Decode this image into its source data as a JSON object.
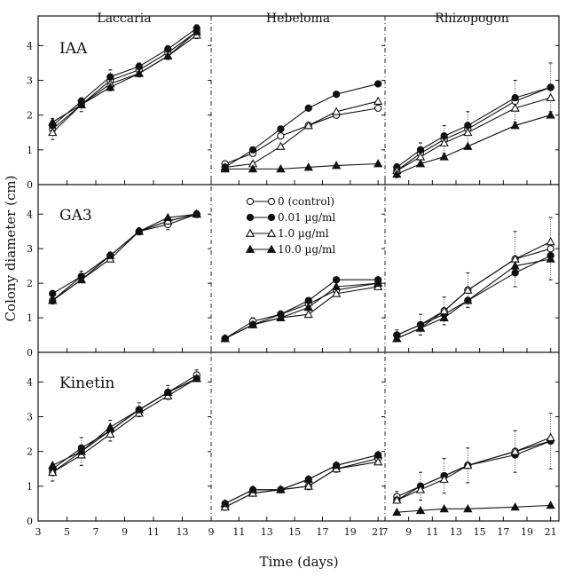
{
  "chart_data": {
    "type": "line",
    "xlabel": "Time (days)",
    "ylabel": "Colony diameter (cm)",
    "ylim": [
      0,
      4.7
    ],
    "yticks": [
      0,
      1,
      2,
      3,
      4
    ],
    "row_labels": [
      "IAA",
      "GA3",
      "Kinetin"
    ],
    "columns": [
      {
        "label": "Laccaria",
        "xlim": [
          3,
          15
        ],
        "xticks": [
          3,
          5,
          7,
          9,
          11,
          13
        ],
        "xtick_labels": [
          "3",
          "5",
          "7",
          "9",
          "11",
          "13"
        ]
      },
      {
        "label": "Hebeloma",
        "xlim": [
          9,
          21.5
        ],
        "xticks": [
          9,
          11,
          13,
          15,
          17,
          19,
          21
        ],
        "xtick_labels": [
          "9",
          "11",
          "13",
          "15",
          "17",
          "19",
          "21"
        ]
      },
      {
        "label": "Rhizopogon",
        "xlim": [
          7,
          21.7
        ],
        "xticks": [
          7,
          9,
          11,
          13,
          15,
          17,
          19,
          21
        ],
        "xtick_labels": [
          "7",
          "9",
          "11",
          "13",
          "15",
          "17",
          "19",
          "21"
        ]
      }
    ],
    "legend": {
      "entries": [
        "0 (control)",
        "0.01 µg/ml",
        "1.0 µg/ml",
        "10.0 µg/ml"
      ],
      "markers": [
        "open-circle",
        "filled-circle",
        "open-triangle",
        "filled-triangle"
      ]
    },
    "panels": [
      {
        "row": 0,
        "col": 0,
        "x": [
          4,
          6,
          8,
          10,
          12,
          14
        ],
        "series": [
          {
            "marker": "open-circle",
            "values": [
              1.6,
              2.3,
              3.0,
              3.3,
              3.8,
              4.4
            ]
          },
          {
            "marker": "filled-circle",
            "values": [
              1.7,
              2.4,
              3.1,
              3.4,
              3.9,
              4.5
            ]
          },
          {
            "marker": "open-triangle",
            "values": [
              1.5,
              2.3,
              2.9,
              3.2,
              3.7,
              4.3
            ]
          },
          {
            "marker": "filled-triangle",
            "values": [
              1.8,
              2.3,
              2.8,
              3.2,
              3.7,
              4.4
            ]
          }
        ],
        "error": [
          0.3,
          0.2,
          0.3,
          0.2,
          0.2,
          0.2
        ]
      },
      {
        "row": 0,
        "col": 1,
        "x": [
          10,
          12,
          14,
          16,
          18,
          21
        ],
        "series": [
          {
            "marker": "open-circle",
            "values": [
              0.6,
              0.9,
              1.4,
              1.7,
              2.0,
              2.2
            ]
          },
          {
            "marker": "filled-circle",
            "values": [
              0.5,
              1.0,
              1.6,
              2.2,
              2.6,
              2.9
            ]
          },
          {
            "marker": "open-triangle",
            "values": [
              0.5,
              0.6,
              1.1,
              1.7,
              2.1,
              2.4
            ]
          },
          {
            "marker": "filled-triangle",
            "values": [
              0.45,
              0.45,
              0.45,
              0.5,
              0.55,
              0.6
            ]
          }
        ],
        "error": [
          0.05,
          0.05,
          0.05,
          0.05,
          0.05,
          0.05
        ]
      },
      {
        "row": 0,
        "col": 2,
        "x": [
          8,
          10,
          12,
          14,
          18,
          21
        ],
        "series": [
          {
            "marker": "open-circle",
            "values": [
              0.4,
              0.9,
              1.3,
              1.6,
              2.4,
              2.8
            ]
          },
          {
            "marker": "filled-circle",
            "values": [
              0.5,
              1.0,
              1.4,
              1.7,
              2.5,
              2.8
            ]
          },
          {
            "marker": "open-triangle",
            "values": [
              0.4,
              0.8,
              1.2,
              1.5,
              2.2,
              2.5
            ]
          },
          {
            "marker": "filled-triangle",
            "values": [
              0.3,
              0.6,
              0.8,
              1.1,
              1.7,
              2.0
            ]
          }
        ],
        "error": [
          0.2,
          0.3,
          0.4,
          0.5,
          0.6,
          0.7
        ]
      },
      {
        "row": 1,
        "col": 0,
        "x": [
          4,
          6,
          8,
          10,
          12,
          14
        ],
        "series": [
          {
            "marker": "open-circle",
            "values": [
              1.5,
              2.2,
              2.8,
              3.5,
              3.7,
              4.0
            ]
          },
          {
            "marker": "filled-circle",
            "values": [
              1.7,
              2.2,
              2.8,
              3.5,
              3.8,
              4.0
            ]
          },
          {
            "marker": "open-triangle",
            "values": [
              1.5,
              2.1,
              2.7,
              3.5,
              3.8,
              4.0
            ]
          },
          {
            "marker": "filled-triangle",
            "values": [
              1.5,
              2.1,
              2.8,
              3.5,
              3.9,
              4.0
            ]
          }
        ],
        "error": [
          0.1,
          0.15,
          0.1,
          0.1,
          0.15,
          0.1
        ]
      },
      {
        "row": 1,
        "col": 1,
        "x": [
          10,
          12,
          14,
          16,
          18,
          21
        ],
        "series": [
          {
            "marker": "open-circle",
            "values": [
              0.4,
              0.9,
              1.1,
              1.4,
              1.8,
              2.0
            ]
          },
          {
            "marker": "filled-circle",
            "values": [
              0.4,
              0.8,
              1.1,
              1.5,
              2.1,
              2.1
            ]
          },
          {
            "marker": "open-triangle",
            "values": [
              0.4,
              0.8,
              1.0,
              1.1,
              1.7,
              1.9
            ]
          },
          {
            "marker": "filled-triangle",
            "values": [
              0.4,
              0.8,
              1.0,
              1.3,
              1.9,
              2.0
            ]
          }
        ],
        "error": [
          0.05,
          0.1,
          0.1,
          0.15,
          0.15,
          0.1
        ]
      },
      {
        "row": 1,
        "col": 2,
        "x": [
          8,
          10,
          12,
          14,
          18,
          21
        ],
        "series": [
          {
            "marker": "open-circle",
            "values": [
              0.5,
              0.8,
              1.2,
              1.8,
              2.7,
              3.0
            ]
          },
          {
            "marker": "filled-circle",
            "values": [
              0.5,
              0.8,
              1.1,
              1.5,
              2.3,
              2.8
            ]
          },
          {
            "marker": "open-triangle",
            "values": [
              0.4,
              0.7,
              1.2,
              1.8,
              2.7,
              3.2
            ]
          },
          {
            "marker": "filled-triangle",
            "values": [
              0.4,
              0.7,
              1.0,
              1.5,
              2.5,
              2.7
            ]
          }
        ],
        "error": [
          0.15,
          0.3,
          0.4,
          0.5,
          0.8,
          0.9
        ]
      },
      {
        "row": 2,
        "col": 0,
        "x": [
          4,
          6,
          8,
          10,
          12,
          14
        ],
        "series": [
          {
            "marker": "open-circle",
            "values": [
              1.4,
              2.0,
              2.6,
              3.2,
              3.7,
              4.2
            ]
          },
          {
            "marker": "filled-circle",
            "values": [
              1.5,
              2.1,
              2.6,
              3.2,
              3.7,
              4.1
            ]
          },
          {
            "marker": "open-triangle",
            "values": [
              1.4,
              1.9,
              2.5,
              3.1,
              3.6,
              4.1
            ]
          },
          {
            "marker": "filled-triangle",
            "values": [
              1.6,
              2.0,
              2.7,
              3.2,
              3.7,
              4.1
            ]
          }
        ],
        "error": [
          0.25,
          0.4,
          0.3,
          0.2,
          0.2,
          0.15
        ]
      },
      {
        "row": 2,
        "col": 1,
        "x": [
          10,
          12,
          14,
          16,
          18,
          21
        ],
        "series": [
          {
            "marker": "open-circle",
            "values": [
              0.4,
              0.8,
              0.9,
              1.0,
              1.5,
              1.8
            ]
          },
          {
            "marker": "filled-circle",
            "values": [
              0.5,
              0.9,
              0.9,
              1.2,
              1.6,
              1.9
            ]
          },
          {
            "marker": "open-triangle",
            "values": [
              0.4,
              0.8,
              0.9,
              1.0,
              1.5,
              1.7
            ]
          },
          {
            "marker": "filled-triangle",
            "values": [
              0.5,
              0.9,
              0.9,
              1.2,
              1.6,
              1.9
            ]
          }
        ],
        "error": [
          0.05,
          0.05,
          0.05,
          0.1,
          0.1,
          0.1
        ]
      },
      {
        "row": 2,
        "col": 2,
        "x": [
          8,
          10,
          12,
          14,
          18,
          21
        ],
        "series": [
          {
            "marker": "open-circle",
            "values": [
              0.7,
              1.0,
              1.3,
              1.6,
              2.0,
              2.3
            ]
          },
          {
            "marker": "filled-circle",
            "values": [
              0.6,
              1.0,
              1.3,
              1.6,
              1.9,
              2.3
            ]
          },
          {
            "marker": "open-triangle",
            "values": [
              0.6,
              0.9,
              1.2,
              1.6,
              2.0,
              2.4
            ]
          },
          {
            "marker": "filled-triangle",
            "values": [
              0.25,
              0.3,
              0.35,
              0.35,
              0.4,
              0.45
            ]
          }
        ],
        "error": [
          0.15,
          0.4,
          0.5,
          0.5,
          0.6,
          0.8
        ]
      }
    ]
  }
}
